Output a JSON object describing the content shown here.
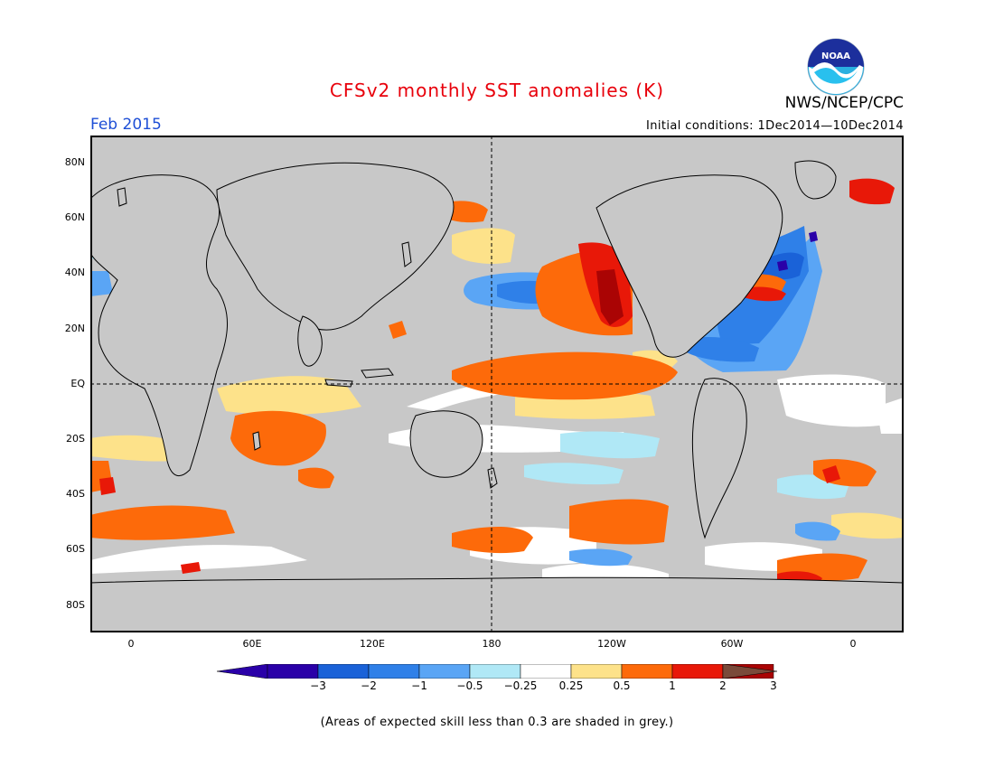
{
  "header": {
    "title": "CFSv2 monthly SST anomalies (K)",
    "agency": "NWS/NCEP/CPC",
    "logo_text": "NOAA",
    "valid_month": "Feb 2015",
    "initial_conditions": "Initial conditions: 1Dec2014—10Dec2014"
  },
  "map": {
    "projection": "equirectangular",
    "lon_range": [
      -20,
      380
    ],
    "lat_range": [
      -90,
      90
    ],
    "lat_labels": [
      "80N",
      "60N",
      "40N",
      "20N",
      "EQ",
      "20S",
      "40S",
      "60S",
      "80S"
    ],
    "lon_labels": [
      "0",
      "60E",
      "120E",
      "180",
      "120W",
      "60W",
      "0"
    ],
    "land_color": "#ffffff",
    "grey_mask_color": "#c8c8c8",
    "reference_lines": [
      "EQ dashed",
      "180 dashed"
    ]
  },
  "colorbar": {
    "tick_labels": [
      "−3",
      "−2",
      "−1",
      "−0.5",
      "−0.25",
      "0.25",
      "0.5",
      "1",
      "2",
      "3"
    ],
    "colors": [
      "#2a00a8",
      "#1a62d8",
      "#2f80e8",
      "#5aa5f5",
      "#b0e8f6",
      "#ffffff",
      "#fde28a",
      "#fd6a0a",
      "#e81808",
      "#aa0404"
    ],
    "under_color": "#2a00a8",
    "over_color": "#7a4a3a"
  },
  "footnote": "(Areas of expected skill less than 0.3 are shaded in grey.)"
}
